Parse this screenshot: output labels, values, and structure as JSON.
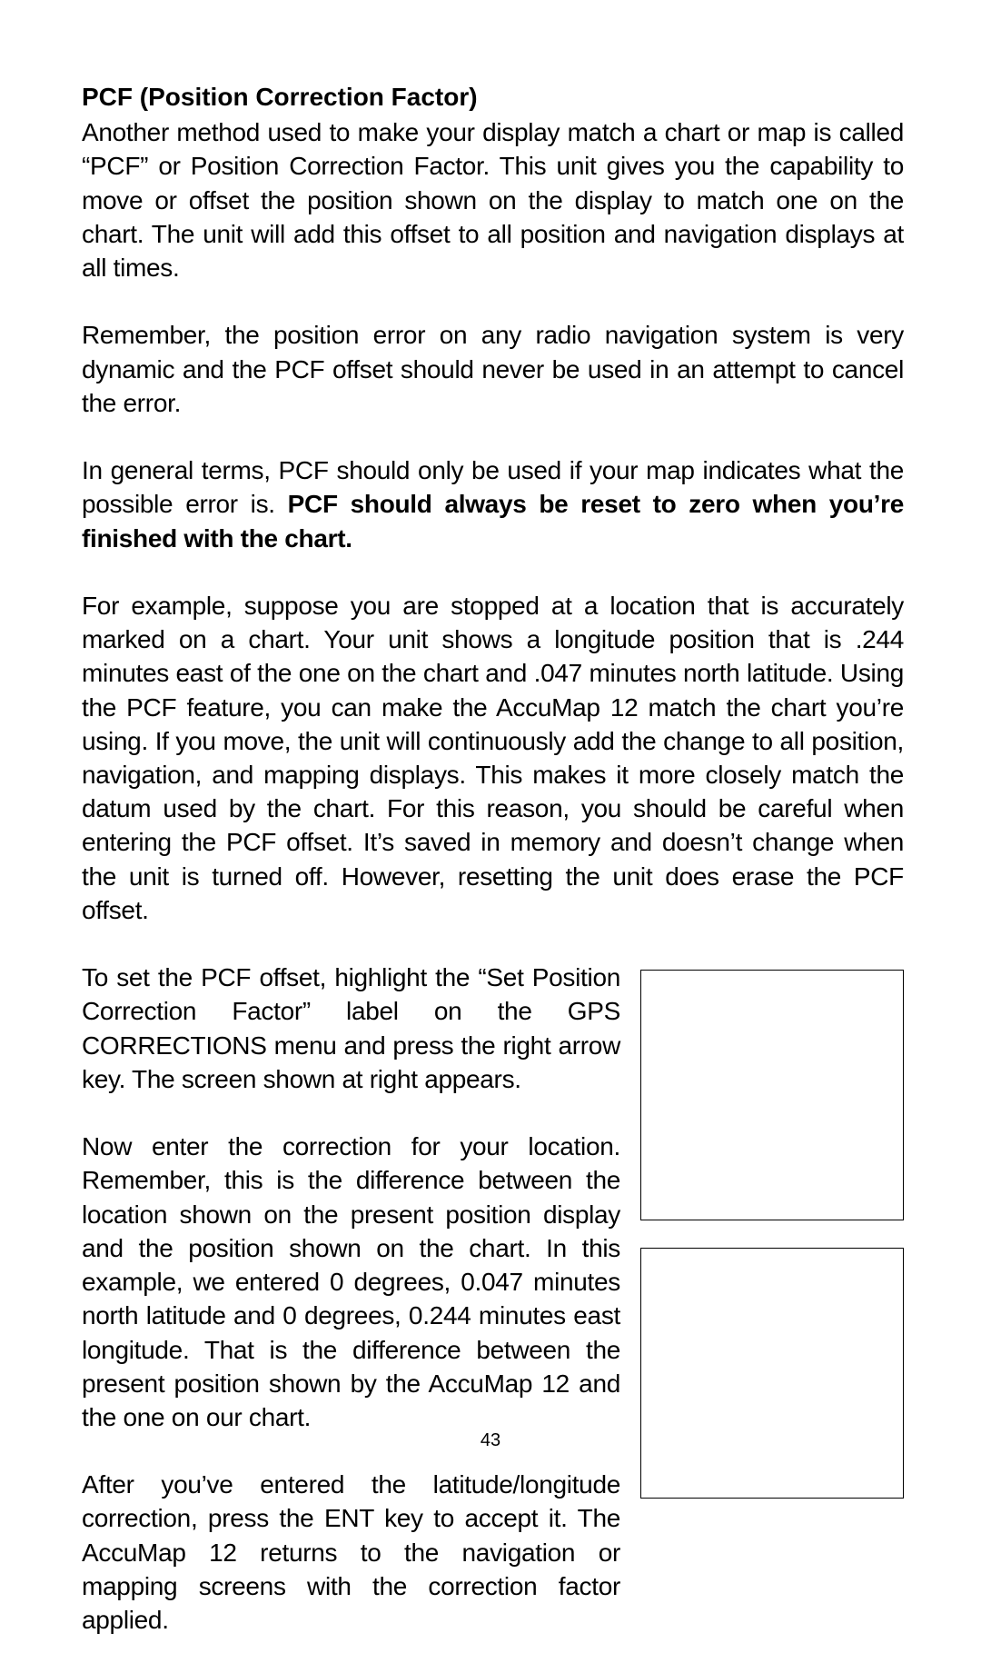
{
  "heading": "PCF (Position Correction Factor)",
  "p1": "Another method used to make your display match a chart or map is called “PCF” or Position Correction Factor. This unit gives you the capability to move or offset the position shown on the display to match one on the chart. The unit will add this offset to all position and navigation displays at all times.",
  "p2": "Remember, the position error on any radio navigation system is very dynamic and the PCF offset should never be used in an attempt to cancel the error.",
  "p3a": "In general terms, PCF should only be used if your map indicates what the possible error is. ",
  "p3b": "PCF should always be reset to zero when you’re finished with the chart.",
  "p4": "For example, suppose you are stopped at a location that is accurately marked on a chart. Your unit shows a longitude position that is .244 minutes east of the one on the chart and .047 minutes north latitude. Using the PCF feature, you can make the AccuMap 12 match the chart you’re using. If you move, the unit will continuously add the change to all position, navigation, and mapping displays. This makes it more closely match the datum used by the chart. For this reason, you should be careful when entering the PCF offset. It’s saved in memory and doesn’t change when the unit is turned off. However, resetting the unit does erase the PCF offset.",
  "p5": "To set the PCF offset, highlight the “Set Position Correction Factor” label on the GPS CORRECTIONS menu and press the right arrow key. The screen shown at right appears.",
  "p6": "Now enter the correction for your location. Remember, this is the difference between the location shown on the present position display and the position shown on the chart. In this example, we entered 0 degrees, 0.047 minutes north latitude and 0 degrees, 0.244 minutes east longitude. That is the difference between the present position shown by the AccuMap 12 and the one on our chart.",
  "p7": "After you’ve entered the latitude/longitude correction, press the ENT key to accept it. The AccuMap 12 returns to the navigation or mapping screens with the correction factor applied.",
  "pageNumber": "43",
  "colors": {
    "text": "#000000",
    "bg": "#ffffff",
    "border": "#000000"
  }
}
